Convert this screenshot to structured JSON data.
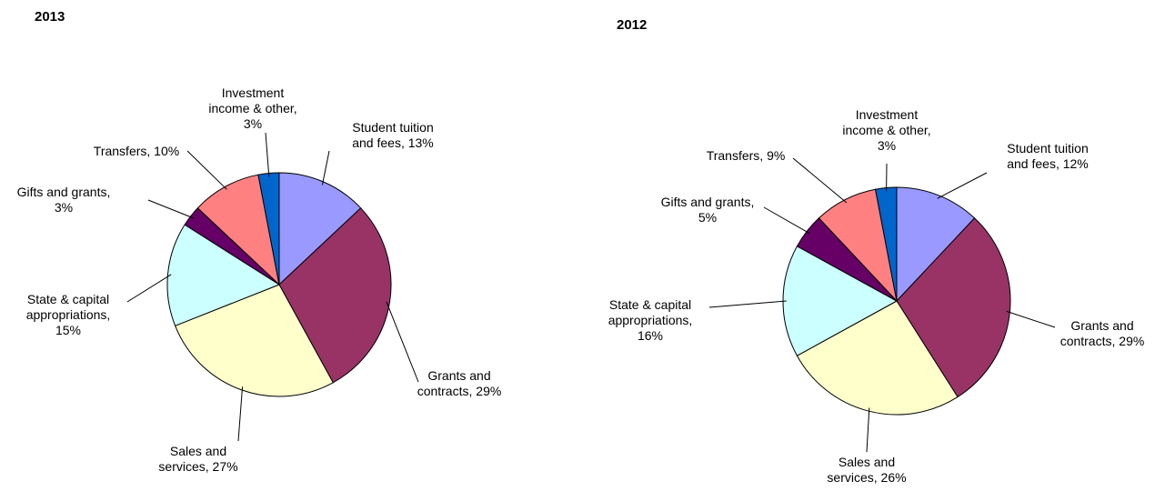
{
  "chart_data": [
    {
      "type": "pie",
      "title": "2013",
      "categories": [
        "Student tuition and fees",
        "Grants and contracts",
        "Sales and services",
        "State & capital appropriations",
        "Gifts and grants",
        "Transfers",
        "Investment income & other"
      ],
      "values": [
        13,
        29,
        27,
        15,
        3,
        10,
        3
      ],
      "value_labels": [
        "13%",
        "29%",
        "27%",
        "15%",
        "3%",
        "10%",
        "3%"
      ],
      "colors": [
        "#9999ff",
        "#993366",
        "#ffffcc",
        "#ccffff",
        "#660066",
        "#ff8080",
        "#0066cc"
      ]
    },
    {
      "type": "pie",
      "title": "2012",
      "categories": [
        "Student tuition and fees",
        "Grants and contracts",
        "Sales and services",
        "State & capital appropriations",
        "Gifts and grants",
        "Transfers",
        "Investment income & other"
      ],
      "values": [
        12,
        29,
        26,
        16,
        5,
        9,
        3
      ],
      "value_labels": [
        "12%",
        "29%",
        "26%",
        "16%",
        "5%",
        "9%",
        "3%"
      ],
      "colors": [
        "#9999ff",
        "#993366",
        "#ffffcc",
        "#ccffff",
        "#660066",
        "#ff8080",
        "#0066cc"
      ]
    }
  ]
}
